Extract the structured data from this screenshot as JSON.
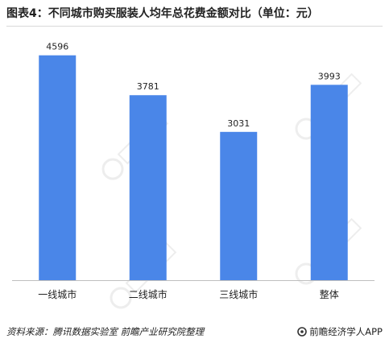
{
  "title": "图表4：不同城市购买服装人均年总花费金额对比（单位：元）",
  "source_label": "资料来源：腾讯数据实验室  前瞻产业研究院整理",
  "brand_label": "前瞻经济学人APP",
  "colors": {
    "bar": "#4a86e8",
    "axis": "#bfbfbf"
  },
  "chart_data": {
    "type": "bar",
    "categories": [
      "一线城市",
      "二线城市",
      "三线城市",
      "整体"
    ],
    "values": [
      4596,
      3781,
      3031,
      3993
    ],
    "ylim": [
      0,
      5200
    ],
    "grid": false,
    "legend": "none"
  }
}
